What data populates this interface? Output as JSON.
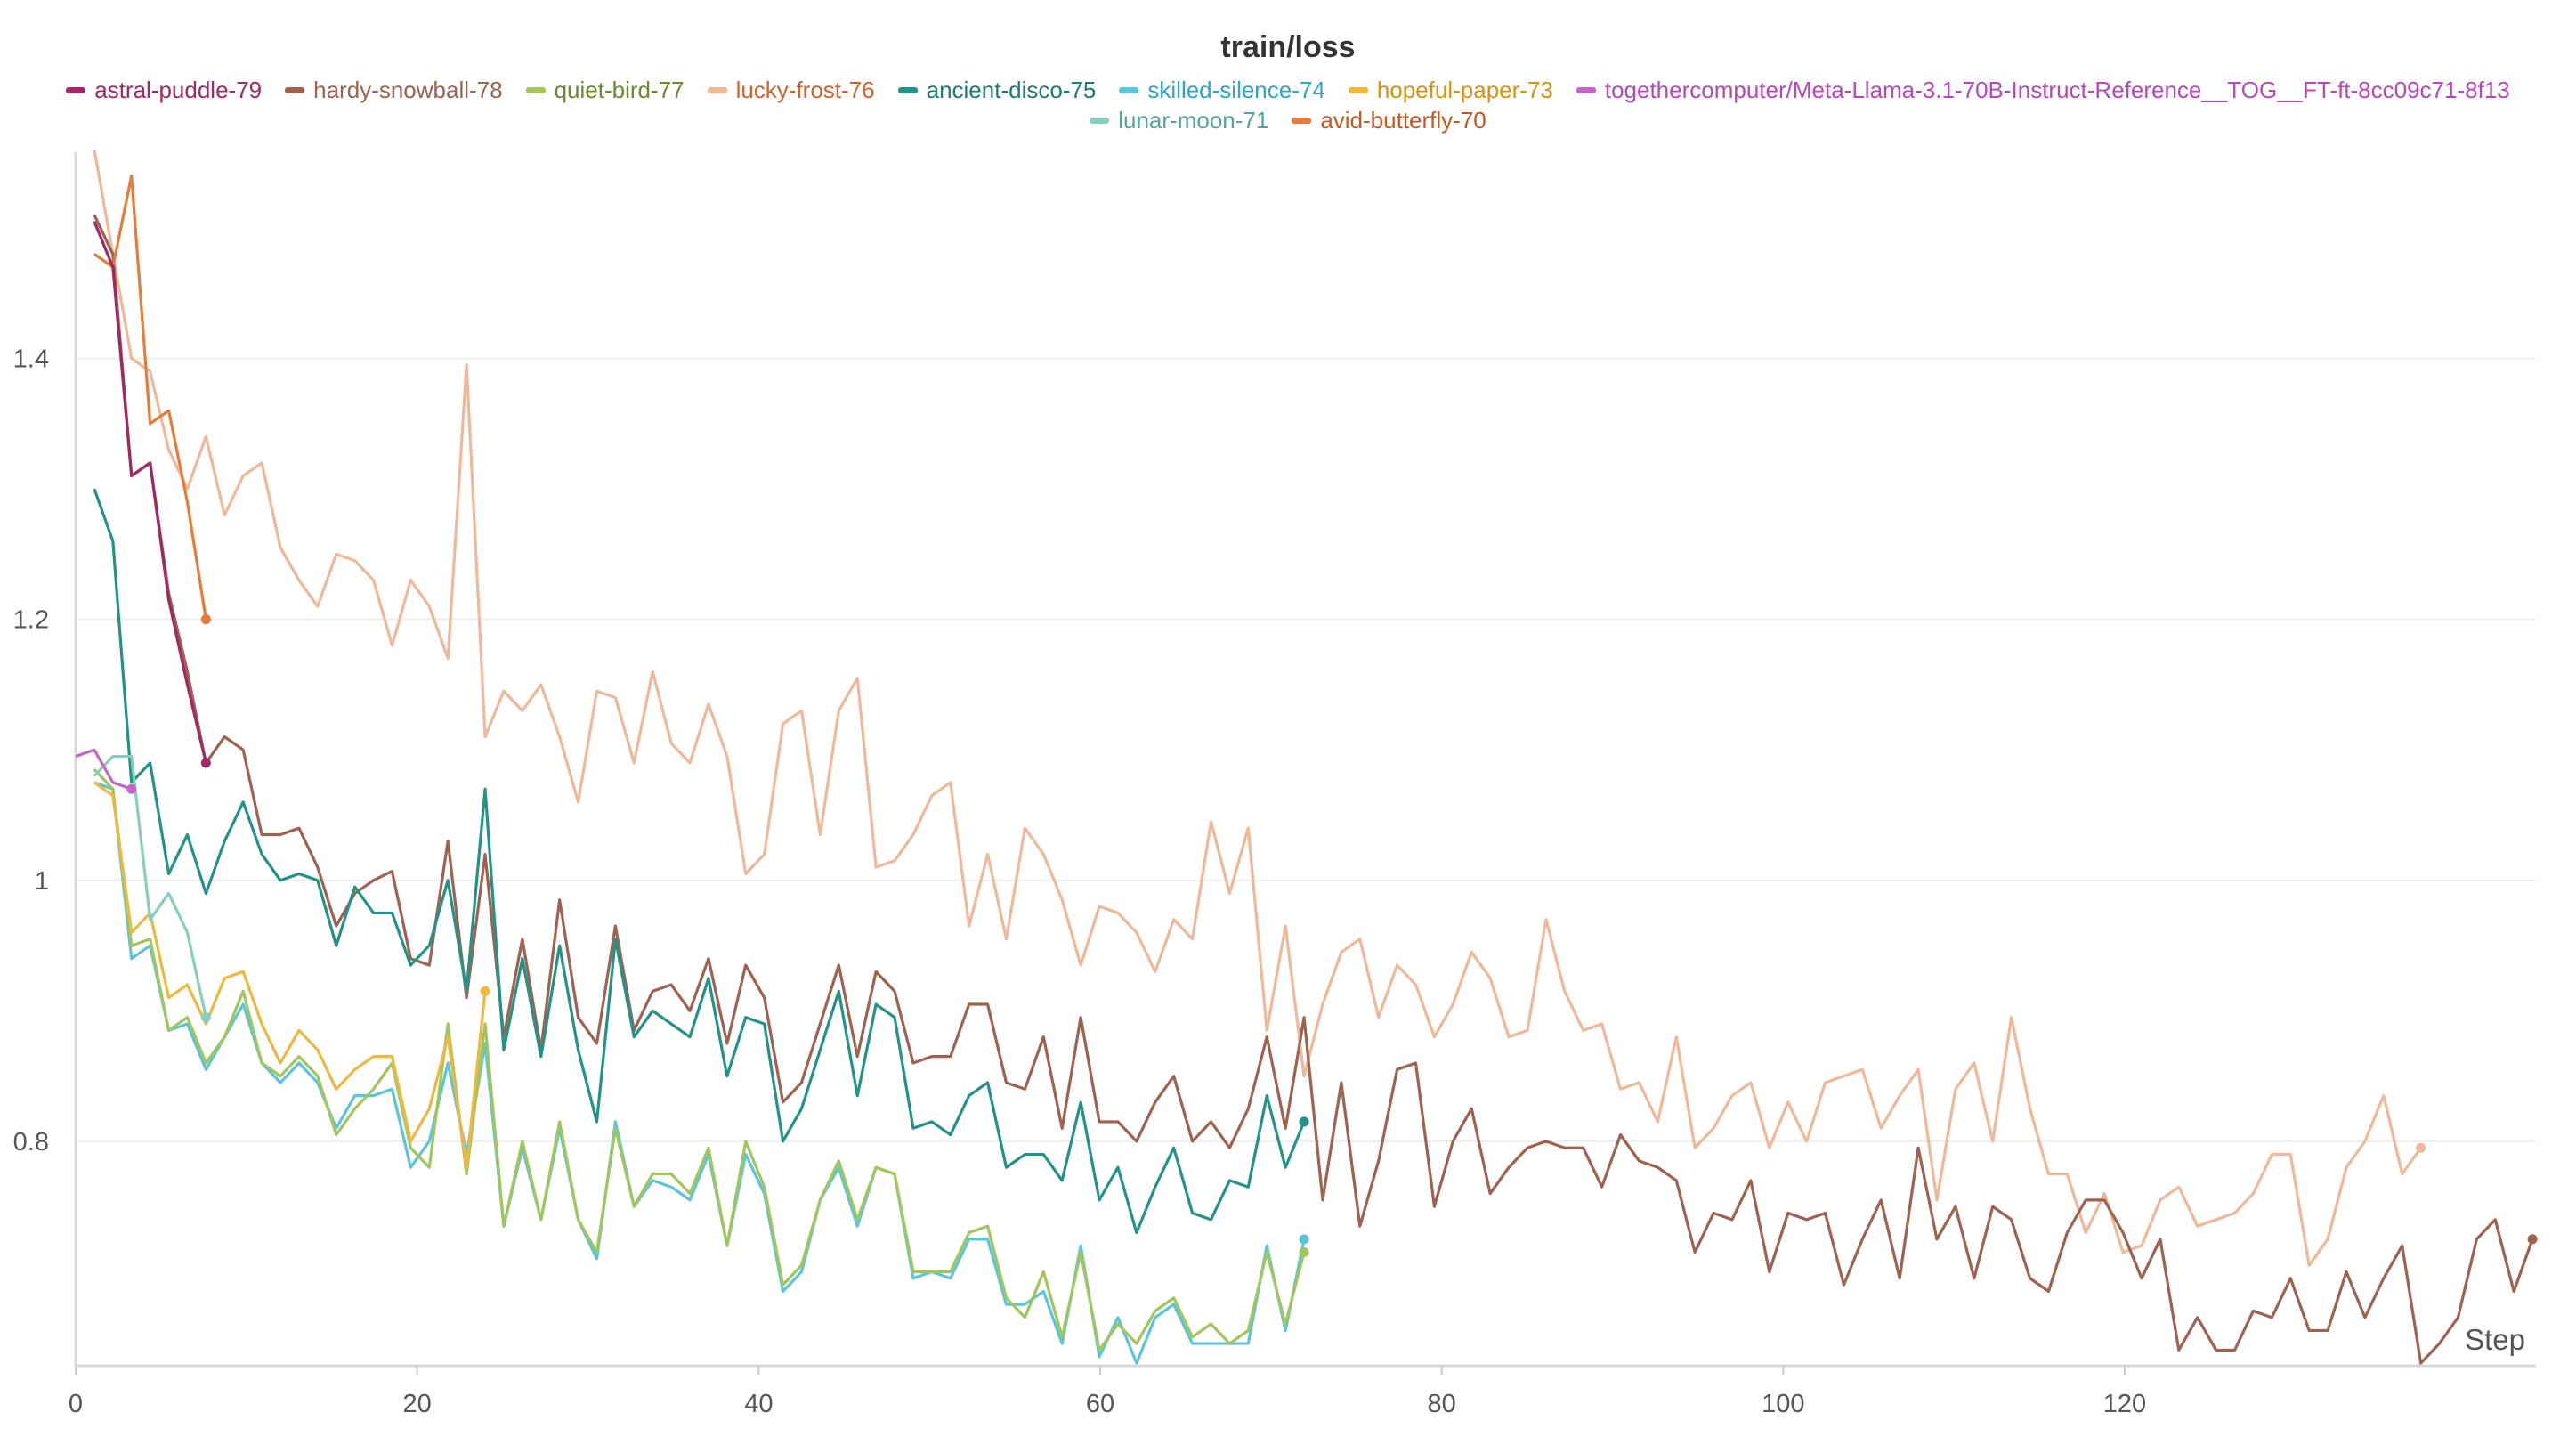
{
  "chart_data": {
    "type": "line",
    "title": "train/loss",
    "xlabel": "Step",
    "ylabel": "",
    "xlim": [
      0,
      132
    ],
    "ylim": [
      0.628,
      1.558
    ],
    "x_ticks": [
      0,
      20,
      40,
      60,
      80,
      100,
      120
    ],
    "y_ticks": [
      0.8,
      1,
      1.2,
      1.4
    ],
    "y_tick_labels": [
      "0.8",
      "1",
      "1.2",
      "1.4"
    ],
    "grid": true,
    "legend_position": "top",
    "step_interval": 1.09,
    "series": [
      {
        "name": "astral-puddle-79",
        "color": "#A12864",
        "text_color": "#A12864",
        "x_start": 1.09,
        "values": [
          1.505,
          1.47,
          1.31,
          1.32,
          1.215,
          1.15,
          1.09
        ]
      },
      {
        "name": "hardy-snowball-78",
        "color": "#A0614F",
        "text_color": "#A0614F",
        "x_start": 1.09,
        "values": [
          1.51,
          1.48,
          1.31,
          1.32,
          1.22,
          1.16,
          1.09,
          1.11,
          1.1,
          1.035,
          1.035,
          1.04,
          1.01,
          0.965,
          0.99,
          1.0,
          1.007,
          0.94,
          0.935,
          1.03,
          0.91,
          1.02,
          0.88,
          0.955,
          0.87,
          0.985,
          0.895,
          0.875,
          0.965,
          0.885,
          0.915,
          0.92,
          0.9,
          0.94,
          0.875,
          0.935,
          0.91,
          0.83,
          0.845,
          0.89,
          0.935,
          0.865,
          0.93,
          0.915,
          0.86,
          0.865,
          0.865,
          0.905,
          0.905,
          0.845,
          0.84,
          0.88,
          0.81,
          0.895,
          0.815,
          0.815,
          0.8,
          0.83,
          0.85,
          0.8,
          0.815,
          0.795,
          0.825,
          0.88,
          0.81,
          0.895,
          0.755,
          0.845,
          0.735,
          0.785,
          0.855,
          0.86,
          0.75,
          0.8,
          0.825,
          0.76,
          0.78,
          0.795,
          0.8,
          0.795,
          0.795,
          0.765,
          0.805,
          0.785,
          0.78,
          0.77,
          0.715,
          0.745,
          0.74,
          0.77,
          0.7,
          0.745,
          0.74,
          0.745,
          0.69,
          0.725,
          0.755,
          0.695,
          0.795,
          0.725,
          0.75,
          0.695,
          0.75,
          0.74,
          0.695,
          0.685,
          0.73,
          0.755,
          0.755,
          0.73,
          0.695,
          0.725,
          0.64,
          0.665,
          0.64,
          0.64,
          0.67,
          0.665,
          0.695,
          0.655,
          0.655,
          0.7,
          0.665,
          0.695,
          0.72,
          0.63,
          0.645,
          0.665,
          0.725,
          0.74,
          0.685,
          0.725
        ]
      },
      {
        "name": "quiet-bird-77",
        "color": "#A1C65B",
        "text_color": "#6B8A2E",
        "x_start": 1.09,
        "values": [
          1.085,
          1.07,
          0.95,
          0.955,
          0.885,
          0.895,
          0.86,
          0.88,
          0.915,
          0.86,
          0.85,
          0.865,
          0.85,
          0.805,
          0.825,
          0.84,
          0.86,
          0.795,
          0.78,
          0.89,
          0.775,
          0.89,
          0.735,
          0.8,
          0.74,
          0.815,
          0.74,
          0.715,
          0.81,
          0.75,
          0.775,
          0.775,
          0.76,
          0.795,
          0.72,
          0.8,
          0.765,
          0.69,
          0.705,
          0.755,
          0.785,
          0.74,
          0.78,
          0.775,
          0.7,
          0.7,
          0.7,
          0.73,
          0.735,
          0.68,
          0.665,
          0.7,
          0.65,
          0.715,
          0.64,
          0.66,
          0.645,
          0.67,
          0.68,
          0.65,
          0.66,
          0.645,
          0.655,
          0.715,
          0.66,
          0.715
        ]
      },
      {
        "name": "lucky-frost-76",
        "color": "#F0B899",
        "text_color": "#D4602A",
        "x_start": 1.09,
        "values": [
          1.56,
          1.48,
          1.4,
          1.39,
          1.33,
          1.3,
          1.34,
          1.28,
          1.31,
          1.32,
          1.255,
          1.23,
          1.21,
          1.25,
          1.245,
          1.23,
          1.18,
          1.23,
          1.21,
          1.17,
          1.395,
          1.11,
          1.145,
          1.13,
          1.15,
          1.11,
          1.06,
          1.145,
          1.14,
          1.09,
          1.16,
          1.105,
          1.09,
          1.135,
          1.095,
          1.005,
          1.02,
          1.12,
          1.13,
          1.035,
          1.13,
          1.155,
          1.01,
          1.015,
          1.035,
          1.065,
          1.075,
          0.965,
          1.02,
          0.955,
          1.04,
          1.02,
          0.985,
          0.935,
          0.98,
          0.975,
          0.96,
          0.93,
          0.97,
          0.955,
          1.045,
          0.99,
          1.04,
          0.885,
          0.965,
          0.85,
          0.905,
          0.945,
          0.955,
          0.895,
          0.935,
          0.92,
          0.88,
          0.905,
          0.945,
          0.925,
          0.88,
          0.885,
          0.97,
          0.915,
          0.885,
          0.89,
          0.84,
          0.845,
          0.815,
          0.88,
          0.795,
          0.81,
          0.835,
          0.845,
          0.795,
          0.83,
          0.8,
          0.845,
          0.85,
          0.855,
          0.81,
          0.835,
          0.855,
          0.755,
          0.84,
          0.86,
          0.8,
          0.895,
          0.825,
          0.775,
          0.775,
          0.73,
          0.76,
          0.715,
          0.72,
          0.755,
          0.765,
          0.735,
          0.74,
          0.745,
          0.76,
          0.79,
          0.79,
          0.705,
          0.725,
          0.78,
          0.8,
          0.835,
          0.775,
          0.795
        ]
      },
      {
        "name": "ancient-disco-75",
        "color": "#229487",
        "text_color": "#1B7D72",
        "x_start": 1.09,
        "values": [
          1.3,
          1.26,
          1.075,
          1.09,
          1.005,
          1.035,
          0.99,
          1.03,
          1.06,
          1.02,
          1.0,
          1.005,
          1.0,
          0.95,
          0.995,
          0.975,
          0.975,
          0.935,
          0.95,
          1.0,
          0.915,
          1.07,
          0.87,
          0.94,
          0.865,
          0.95,
          0.87,
          0.815,
          0.955,
          0.88,
          0.9,
          0.89,
          0.88,
          0.925,
          0.85,
          0.895,
          0.89,
          0.8,
          0.825,
          0.87,
          0.915,
          0.835,
          0.905,
          0.895,
          0.81,
          0.815,
          0.805,
          0.835,
          0.845,
          0.78,
          0.79,
          0.79,
          0.77,
          0.83,
          0.755,
          0.78,
          0.73,
          0.765,
          0.795,
          0.745,
          0.74,
          0.77,
          0.765,
          0.835,
          0.78,
          0.815
        ]
      },
      {
        "name": "skilled-silence-74",
        "color": "#5BC5DB",
        "text_color": "#2AA7C9",
        "x_start": 1.09,
        "values": [
          1.075,
          1.07,
          0.94,
          0.95,
          0.885,
          0.89,
          0.855,
          0.88,
          0.905,
          0.86,
          0.845,
          0.86,
          0.845,
          0.81,
          0.835,
          0.835,
          0.84,
          0.78,
          0.8,
          0.86,
          0.79,
          0.875,
          0.735,
          0.795,
          0.74,
          0.81,
          0.74,
          0.71,
          0.815,
          0.75,
          0.77,
          0.765,
          0.755,
          0.79,
          0.72,
          0.79,
          0.76,
          0.685,
          0.7,
          0.755,
          0.78,
          0.735,
          0.78,
          0.775,
          0.695,
          0.7,
          0.695,
          0.725,
          0.725,
          0.675,
          0.675,
          0.685,
          0.645,
          0.72,
          0.635,
          0.665,
          0.63,
          0.665,
          0.675,
          0.645,
          0.645,
          0.645,
          0.645,
          0.72,
          0.655,
          0.725
        ]
      },
      {
        "name": "hopeful-paper-73",
        "color": "#F0B73F",
        "text_color": "#D9920F",
        "x_start": 1.09,
        "values": [
          1.075,
          1.065,
          0.96,
          0.975,
          0.91,
          0.92,
          0.89,
          0.925,
          0.93,
          0.89,
          0.86,
          0.885,
          0.87,
          0.84,
          0.855,
          0.865,
          0.865,
          0.8,
          0.825,
          0.88,
          0.78,
          0.915
        ]
      },
      {
        "name": "togethercomputer/Meta-Llama-3.1-70B-Instruct-Reference__TOG__FT-ft-8cc09c71-8f13",
        "color": "#C565C7",
        "text_color": "#B946BC",
        "x_start": 0,
        "values": [
          1.095,
          1.1,
          1.075,
          1.07
        ]
      },
      {
        "name": "lunar-moon-71",
        "color": "#87CEBF",
        "text_color": "#4FA897",
        "x_start": 1.09,
        "values": [
          1.08,
          1.095,
          1.095,
          0.97,
          0.99,
          0.96,
          0.895
        ]
      },
      {
        "name": "avid-butterfly-70",
        "color": "#E87B3A",
        "text_color": "#C8561E",
        "x_start": 1.09,
        "values": [
          1.48,
          1.47,
          1.54,
          1.35,
          1.36,
          1.29,
          1.2
        ]
      }
    ]
  }
}
